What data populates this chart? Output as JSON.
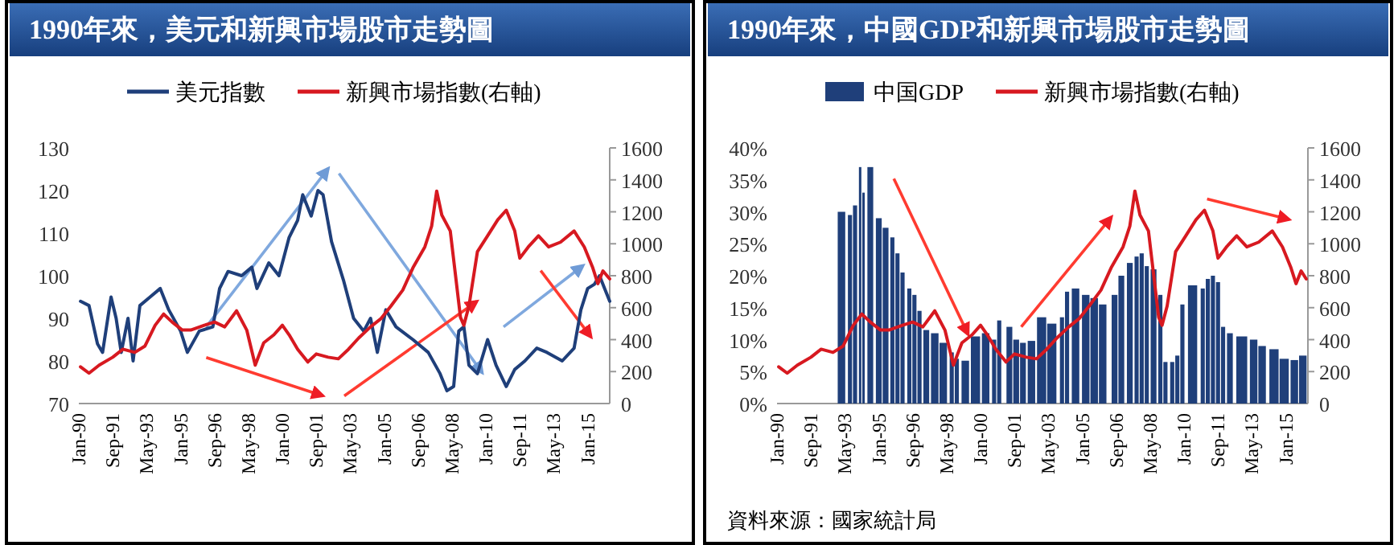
{
  "chart_data": [
    {
      "type": "line",
      "title": "1990年來，美元和新興市場股市走勢圖",
      "legend": "top",
      "xlim": [
        "1990-01",
        "2016-02"
      ],
      "xticks": [
        {
          "value": "1990-01",
          "label": "Jan-90"
        },
        {
          "value": "1991-09",
          "label": "Sep-91"
        },
        {
          "value": "1993-05",
          "label": "May-93"
        },
        {
          "value": "1995-01",
          "label": "Jan-95"
        },
        {
          "value": "1996-09",
          "label": "Sep-96"
        },
        {
          "value": "1998-05",
          "label": "May-98"
        },
        {
          "value": "2000-01",
          "label": "Jan-00"
        },
        {
          "value": "2001-09",
          "label": "Sep-01"
        },
        {
          "value": "2003-05",
          "label": "May-03"
        },
        {
          "value": "2005-01",
          "label": "Jan-05"
        },
        {
          "value": "2006-09",
          "label": "Sep-06"
        },
        {
          "value": "2008-05",
          "label": "May-08"
        },
        {
          "value": "2010-01",
          "label": "Jan-10"
        },
        {
          "value": "2011-09",
          "label": "Sep-11"
        },
        {
          "value": "2013-05",
          "label": "May-13"
        },
        {
          "value": "2015-01",
          "label": "Jan-15"
        }
      ],
      "ylim": [
        70,
        130
      ],
      "yticks": [
        70,
        80,
        90,
        100,
        110,
        120,
        130
      ],
      "y2lim": [
        0,
        1600
      ],
      "y2ticks": [
        0,
        200,
        400,
        600,
        800,
        1000,
        1200,
        1400,
        1600
      ],
      "series": [
        {
          "name": "美元指數",
          "color": "#1f3f7a",
          "x": [
            "1990-02",
            "1990-07",
            "1990-12",
            "1991-03",
            "1991-08",
            "1991-11",
            "1992-02",
            "1992-06",
            "1992-09",
            "1993-01",
            "1993-07",
            "1994-01",
            "1994-06",
            "1995-01",
            "1995-05",
            "1995-12",
            "1996-08",
            "1996-12",
            "1997-05",
            "1998-01",
            "1998-07",
            "1998-10",
            "1999-05",
            "1999-11",
            "2000-05",
            "2000-10",
            "2001-01",
            "2001-06",
            "2001-10",
            "2002-01",
            "2002-06",
            "2003-01",
            "2003-07",
            "2004-01",
            "2004-05",
            "2004-09",
            "2005-02",
            "2005-08",
            "2006-06",
            "2007-03",
            "2007-10",
            "2008-02",
            "2008-06",
            "2008-09",
            "2008-12",
            "2009-03",
            "2009-08",
            "2010-02",
            "2010-07",
            "2011-01",
            "2011-06",
            "2011-12",
            "2012-07",
            "2013-01",
            "2013-10",
            "2014-05",
            "2014-09",
            "2015-01",
            "2015-05",
            "2015-08",
            "2015-11",
            "2016-02"
          ],
          "values": [
            94,
            93,
            84,
            82,
            95,
            90,
            82,
            90,
            80,
            93,
            95,
            97,
            92,
            87,
            82,
            87,
            88,
            97,
            101,
            100,
            102,
            97,
            103,
            100,
            109,
            113,
            119,
            114,
            120,
            119,
            108,
            99,
            90,
            87,
            90,
            82,
            92,
            88,
            85,
            82,
            77,
            73,
            74,
            87,
            88,
            79,
            77,
            85,
            79,
            74,
            78,
            80,
            83,
            82,
            80,
            83,
            92,
            97,
            98,
            100,
            97,
            94
          ]
        },
        {
          "name": "新興市場指數(右軸)",
          "color": "#d71920",
          "axis": "y2",
          "x": [
            "1990-02",
            "1990-07",
            "1991-01",
            "1991-09",
            "1992-03",
            "1992-10",
            "1993-04",
            "1993-10",
            "1994-03",
            "1994-08",
            "1995-02",
            "1995-07",
            "1996-03",
            "1996-09",
            "1997-03",
            "1997-10",
            "1998-04",
            "1998-09",
            "1999-02",
            "1999-08",
            "2000-01",
            "2000-05",
            "2000-10",
            "2001-04",
            "2001-09",
            "2002-04",
            "2002-10",
            "2003-04",
            "2003-10",
            "2004-05",
            "2004-11",
            "2005-05",
            "2005-12",
            "2006-06",
            "2007-01",
            "2007-05",
            "2007-08",
            "2007-11",
            "2008-04",
            "2008-07",
            "2008-10",
            "2008-12",
            "2009-03",
            "2009-08",
            "2010-02",
            "2010-08",
            "2011-01",
            "2011-06",
            "2011-09",
            "2012-02",
            "2012-08",
            "2013-02",
            "2013-09",
            "2014-05",
            "2014-11",
            "2015-04",
            "2015-07",
            "2015-10",
            "2016-02"
          ],
          "values": [
            230,
            190,
            240,
            290,
            340,
            320,
            360,
            490,
            560,
            510,
            460,
            460,
            490,
            510,
            480,
            580,
            460,
            240,
            380,
            430,
            490,
            430,
            340,
            260,
            310,
            290,
            280,
            340,
            410,
            480,
            530,
            610,
            710,
            850,
            980,
            1110,
            1330,
            1180,
            1080,
            810,
            540,
            490,
            610,
            950,
            1050,
            1150,
            1210,
            1080,
            910,
            980,
            1050,
            980,
            1010,
            1080,
            980,
            850,
            750,
            830,
            780
          ]
        }
      ]
    },
    {
      "type": "bar",
      "title": "1990年來，中國GDP和新興市場股市走勢圖",
      "legend": "top",
      "xlim": [
        "1990-01",
        "2016-02"
      ],
      "xticks": [
        {
          "value": "1990-01",
          "label": "Jan-90"
        },
        {
          "value": "1991-09",
          "label": "Sep-91"
        },
        {
          "value": "1993-05",
          "label": "May-93"
        },
        {
          "value": "1995-01",
          "label": "Jan-95"
        },
        {
          "value": "1996-09",
          "label": "Sep-96"
        },
        {
          "value": "1998-05",
          "label": "May-98"
        },
        {
          "value": "2000-01",
          "label": "Jan-00"
        },
        {
          "value": "2001-09",
          "label": "Sep-01"
        },
        {
          "value": "2003-05",
          "label": "May-03"
        },
        {
          "value": "2005-01",
          "label": "Jan-05"
        },
        {
          "value": "2006-09",
          "label": "Sep-06"
        },
        {
          "value": "2008-05",
          "label": "May-08"
        },
        {
          "value": "2010-01",
          "label": "Jan-10"
        },
        {
          "value": "2011-09",
          "label": "Sep-11"
        },
        {
          "value": "2013-05",
          "label": "May-13"
        },
        {
          "value": "2015-01",
          "label": "Jan-15"
        }
      ],
      "ylim": [
        0,
        40
      ],
      "yticks": [
        {
          "value": 0,
          "label": "0%"
        },
        {
          "value": 5,
          "label": "5%"
        },
        {
          "value": 10,
          "label": "10%"
        },
        {
          "value": 15,
          "label": "15%"
        },
        {
          "value": 20,
          "label": "20%"
        },
        {
          "value": 25,
          "label": "25%"
        },
        {
          "value": 30,
          "label": "30%"
        },
        {
          "value": 35,
          "label": "35%"
        },
        {
          "value": 40,
          "label": "40%"
        }
      ],
      "y2lim": [
        0,
        1600
      ],
      "y2ticks": [
        0,
        200,
        400,
        600,
        800,
        1000,
        1200,
        1400,
        1600
      ],
      "series": [
        {
          "name": "中国GDP",
          "color": "#1f3f7a",
          "x": [
            "1993-03",
            "1993-08",
            "1993-11",
            "1994-02",
            "1994-04",
            "1994-08",
            "1995-01",
            "1995-05",
            "1995-09",
            "1995-12",
            "1996-03",
            "1996-07",
            "1996-10",
            "1997-01",
            "1997-05",
            "1997-10",
            "1998-03",
            "1998-08",
            "1998-11",
            "1999-04",
            "1999-10",
            "2000-04",
            "2000-09",
            "2000-12",
            "2001-06",
            "2001-10",
            "2002-02",
            "2002-07",
            "2003-01",
            "2003-07",
            "2004-01",
            "2004-04",
            "2004-09",
            "2005-03",
            "2005-08",
            "2006-01",
            "2006-08",
            "2006-12",
            "2007-05",
            "2007-09",
            "2007-12",
            "2008-03",
            "2008-07",
            "2008-11",
            "2009-02",
            "2009-06",
            "2009-09",
            "2009-12",
            "2010-06",
            "2010-12",
            "2011-03",
            "2011-06",
            "2011-09",
            "2011-12",
            "2012-04",
            "2012-11",
            "2013-06",
            "2013-11",
            "2014-06",
            "2014-12",
            "2015-06",
            "2015-11"
          ],
          "values": [
            30,
            29.5,
            31,
            37,
            33,
            37,
            29,
            27.5,
            26,
            23.5,
            20.5,
            18,
            17,
            14.5,
            11.5,
            11,
            9.5,
            8,
            7,
            6.7,
            10.5,
            11,
            10,
            13,
            12,
            10,
            9.5,
            9.8,
            13.5,
            12.5,
            13.5,
            17.5,
            18,
            17,
            16.5,
            15.5,
            17,
            20,
            22,
            23,
            23.5,
            21.5,
            21,
            17,
            6.5,
            6.5,
            7.5,
            15.5,
            18.5,
            18,
            19.5,
            20,
            19,
            12,
            11,
            10.5,
            10,
            9,
            8.5,
            7,
            6.8,
            7.5
          ]
        },
        {
          "name": "新興市場指數(右軸)",
          "type": "line",
          "color": "#d71920",
          "axis": "y2",
          "x": [
            "1990-02",
            "1990-07",
            "1991-01",
            "1991-09",
            "1992-03",
            "1992-10",
            "1993-04",
            "1993-10",
            "1994-03",
            "1994-08",
            "1995-02",
            "1995-07",
            "1996-03",
            "1996-09",
            "1997-03",
            "1997-10",
            "1998-04",
            "1998-09",
            "1999-02",
            "1999-08",
            "2000-01",
            "2000-05",
            "2000-10",
            "2001-04",
            "2001-09",
            "2002-04",
            "2002-10",
            "2003-04",
            "2003-10",
            "2004-05",
            "2004-11",
            "2005-05",
            "2005-12",
            "2006-06",
            "2007-01",
            "2007-05",
            "2007-08",
            "2007-11",
            "2008-04",
            "2008-07",
            "2008-10",
            "2008-12",
            "2009-03",
            "2009-08",
            "2010-02",
            "2010-08",
            "2011-01",
            "2011-06",
            "2011-09",
            "2012-02",
            "2012-08",
            "2013-02",
            "2013-09",
            "2014-05",
            "2014-11",
            "2015-04",
            "2015-07",
            "2015-10",
            "2016-01"
          ],
          "values": [
            230,
            190,
            240,
            290,
            340,
            320,
            360,
            490,
            560,
            510,
            460,
            460,
            490,
            510,
            480,
            580,
            460,
            240,
            380,
            430,
            490,
            430,
            340,
            260,
            310,
            290,
            280,
            340,
            410,
            480,
            530,
            610,
            710,
            850,
            980,
            1110,
            1330,
            1180,
            1080,
            810,
            540,
            490,
            610,
            950,
            1050,
            1150,
            1210,
            1080,
            910,
            980,
            1050,
            980,
            1010,
            1080,
            980,
            850,
            750,
            830,
            780
          ]
        }
      ],
      "annotations": [
        "資料來源：國家統計局"
      ]
    }
  ]
}
